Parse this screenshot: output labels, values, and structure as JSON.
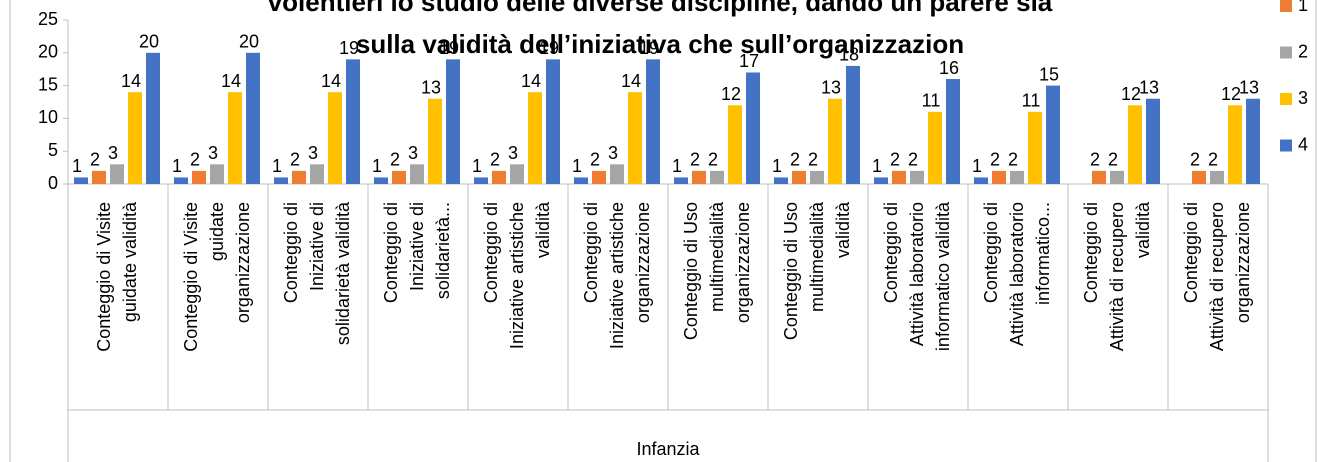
{
  "chart_data": {
    "type": "bar",
    "title": [
      "volentieri lo studio delle diverse discipline, dando un parere sia",
      "sulla validità dell’iniziativa che sull’organizzazion"
    ],
    "categories": [
      [
        "Conteggio di Visite",
        "guidate validità"
      ],
      [
        "Conteggio di Visite",
        "guidate",
        "organizzazione"
      ],
      [
        "Conteggio di",
        "Iniziative di",
        "solidarietà validità"
      ],
      [
        "Conteggio di",
        "Iniziative di",
        "solidarietà..."
      ],
      [
        "Conteggio di",
        "Iniziative artistiche",
        "validità"
      ],
      [
        "Conteggio di",
        "Iniziative artistiche",
        "organizzazione"
      ],
      [
        "Conteggio di Uso",
        "multimedialità",
        "organizzazione"
      ],
      [
        "Conteggio di Uso",
        "multimedialità",
        "validità"
      ],
      [
        "Conteggio di",
        "Attività laboratorio",
        "informatico validità"
      ],
      [
        "Conteggio di",
        "Attività laboratorio",
        "informatico..."
      ],
      [
        "Conteggio di",
        "Attività di recupero",
        "validità"
      ],
      [
        "Conteggio di",
        "Attività di recupero",
        "organizzazione"
      ]
    ],
    "group_label": "Infanzia",
    "series": [
      {
        "color": "#4472c4",
        "values": [
          1,
          1,
          1,
          1,
          1,
          1,
          1,
          1,
          1,
          1,
          null,
          null
        ]
      },
      {
        "name": "1",
        "color": "#ed7d31",
        "values": [
          2,
          2,
          2,
          2,
          2,
          2,
          2,
          2,
          2,
          2,
          2,
          2
        ]
      },
      {
        "name": "2",
        "color": "#a5a5a5",
        "values": [
          3,
          3,
          3,
          3,
          3,
          3,
          2,
          2,
          2,
          2,
          2,
          2
        ]
      },
      {
        "name": "3",
        "color": "#ffc000",
        "values": [
          14,
          14,
          14,
          13,
          14,
          14,
          12,
          13,
          11,
          11,
          12,
          12
        ]
      },
      {
        "name": "4",
        "color": "#4472c4",
        "values": [
          20,
          20,
          19,
          19,
          19,
          19,
          17,
          18,
          16,
          15,
          13,
          13
        ]
      }
    ],
    "ylim": [
      0,
      25
    ],
    "yticks": [
      0,
      5,
      10,
      15,
      20,
      25
    ],
    "data_labels": true,
    "legend": "right"
  }
}
